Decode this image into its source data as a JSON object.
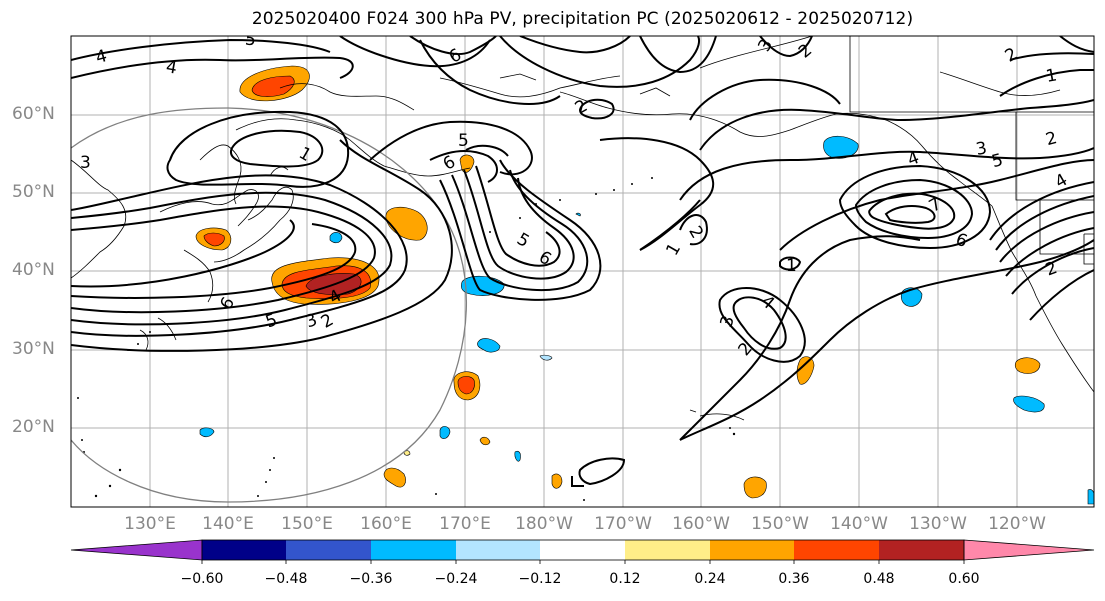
{
  "title": "2025020400 F024 300 hPa PV, precipitation PC (2025020612 - 2025020712)",
  "lat_labels": [
    "60°N",
    "50°N",
    "40°N",
    "30°N",
    "20°N"
  ],
  "lon_labels": [
    "130°E",
    "140°E",
    "150°E",
    "160°E",
    "170°E",
    "180°W",
    "170°W",
    "160°W",
    "150°W",
    "140°W",
    "130°W",
    "120°W"
  ],
  "contour_labels": [
    "1",
    "2",
    "3",
    "4",
    "5",
    "6"
  ],
  "colorbar": {
    "ticks": [
      "−0.60",
      "−0.48",
      "−0.36",
      "−0.24",
      "−0.12",
      "0.12",
      "0.24",
      "0.36",
      "0.48",
      "0.60"
    ],
    "colors": [
      "#9933cc",
      "#000088",
      "#3355cc",
      "#00bbff",
      "#b3e5ff",
      "#ffffff",
      "#ffee88",
      "#ffa500",
      "#ff4500",
      "#b22222",
      "#ff88aa"
    ],
    "extend": "both"
  },
  "colors": {
    "frame": "#000000",
    "gridline": "#b0b0b0",
    "coast": "#000000",
    "label_gray": "#888888",
    "contour": "#000000",
    "circle": "#808080"
  }
}
